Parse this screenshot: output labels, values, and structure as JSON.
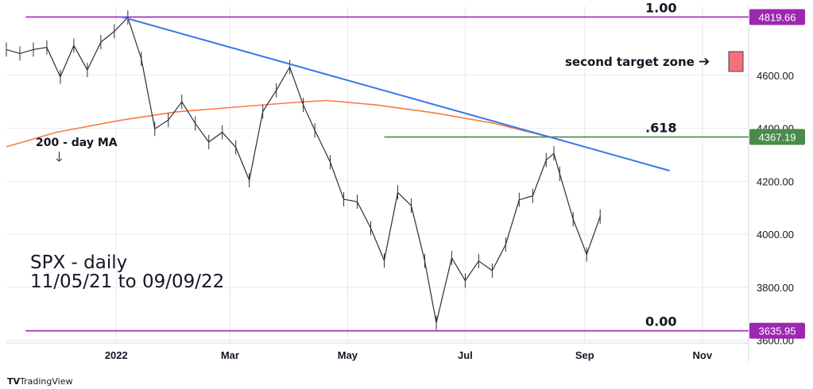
{
  "chart_data": {
    "type": "line",
    "symbol": "SPX - daily",
    "date_range": "11/05/21 to 09/09/22",
    "x_ticks": [
      "2022",
      "Mar",
      "May",
      "Jul",
      "Sep",
      "Nov"
    ],
    "x_tick_dates": [
      "2022-01-01",
      "2022-03-01",
      "2022-05-01",
      "2022-07-01",
      "2022-09-01",
      "2022-11-01"
    ],
    "x_range": [
      "2021-11-05",
      "2022-11-25"
    ],
    "y_ticks": [
      3600,
      3800,
      4000,
      4200,
      4400,
      4600
    ],
    "y_tick_labels": [
      "3600.00",
      "3800.00",
      "4000.00",
      "4200.00",
      "4400.00",
      "4600.00"
    ],
    "ylim": [
      3590,
      4860
    ],
    "price_series": {
      "name": "",
      "x": [
        "2021-11-05",
        "2021-11-12",
        "2021-11-19",
        "2021-11-26",
        "2021-12-03",
        "2021-12-10",
        "2021-12-17",
        "2021-12-24",
        "2021-12-31",
        "2022-01-07",
        "2022-01-14",
        "2022-01-21",
        "2022-01-28",
        "2022-02-04",
        "2022-02-11",
        "2022-02-18",
        "2022-02-25",
        "2022-03-04",
        "2022-03-11",
        "2022-03-18",
        "2022-03-25",
        "2022-04-01",
        "2022-04-08",
        "2022-04-14",
        "2022-04-22",
        "2022-04-29",
        "2022-05-06",
        "2022-05-13",
        "2022-05-20",
        "2022-05-27",
        "2022-06-03",
        "2022-06-10",
        "2022-06-16",
        "2022-06-24",
        "2022-07-01",
        "2022-07-08",
        "2022-07-15",
        "2022-07-22",
        "2022-07-29",
        "2022-08-05",
        "2022-08-12",
        "2022-08-16",
        "2022-08-19",
        "2022-08-26",
        "2022-09-02",
        "2022-09-09"
      ],
      "close": [
        4697,
        4682,
        4697,
        4705,
        4594,
        4712,
        4620,
        4725,
        4766,
        4818,
        4662,
        4398,
        4431,
        4500,
        4418,
        4348,
        4385,
        4328,
        4204,
        4463,
        4543,
        4631,
        4488,
        4392,
        4272,
        4132,
        4123,
        4023,
        3901,
        4158,
        4108,
        3900,
        3666,
        3911,
        3825,
        3899,
        3863,
        3961,
        4130,
        4145,
        4280,
        4305,
        4228,
        4057,
        3924,
        4067
      ]
    },
    "ma_series": {
      "name": "200 - day MA",
      "x": [
        "2021-11-05",
        "2021-12-01",
        "2022-01-03",
        "2022-02-01",
        "2022-03-01",
        "2022-04-01",
        "2022-04-20",
        "2022-05-16",
        "2022-06-15",
        "2022-07-15",
        "2022-08-15",
        "2022-09-01"
      ],
      "y": [
        4330,
        4385,
        4430,
        4462,
        4478,
        4496,
        4505,
        4488,
        4458,
        4420,
        4365,
        4330
      ]
    },
    "trendline": {
      "x": [
        "2022-01-04",
        "2022-10-15"
      ],
      "y": [
        4820,
        4240
      ]
    },
    "levels": [
      {
        "label": "1.00",
        "value": 4819.66,
        "tag": "4819.66",
        "color": "#9c27b0",
        "x_start": "2021-11-15"
      },
      {
        "label": ".618",
        "value": 4367.19,
        "tag": "4367.19",
        "color": "#4a8a4a",
        "x_start": "2022-05-20"
      },
      {
        "label": "0.00",
        "value": 3635.95,
        "tag": "3635.95",
        "color": "#9c27b0",
        "x_start": "2021-11-15"
      }
    ],
    "annotations": {
      "ma_label": "200 - day MA",
      "second_target": "second target zone",
      "arrow_right": "➔",
      "arrow_down": "🡓"
    },
    "colors": {
      "price": "#2a2e39",
      "ma": "#f57c45",
      "trendline": "#3a78e8",
      "target_box": "#f4707a",
      "fib_purple": "#9c27b0",
      "fib_green": "#4a8a4a",
      "grid": "#e6e8ec"
    },
    "grid": true,
    "legend": "none"
  },
  "watermark": "TradingView"
}
